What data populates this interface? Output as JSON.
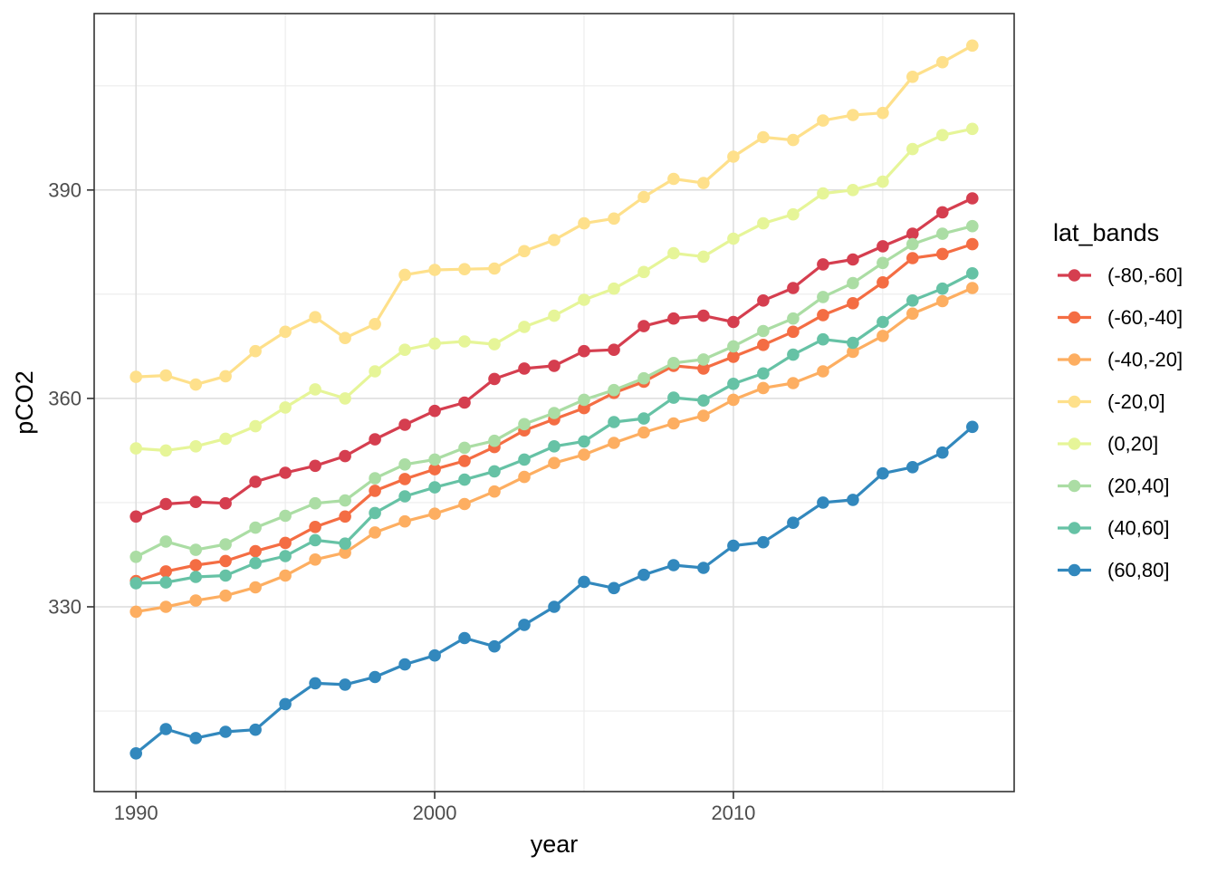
{
  "chart_data": {
    "type": "line",
    "title": "",
    "xlabel": "year",
    "ylabel": "pCO2",
    "legend_title": "lat_bands",
    "legend_position": "right",
    "grid": "on",
    "xlim": [
      1988.6,
      2019.4
    ],
    "ylim": [
      303.4,
      415.4
    ],
    "x_ticks": [
      1990,
      2000,
      2010
    ],
    "x_minor_ticks": [
      1995,
      2005,
      2015
    ],
    "y_ticks": [
      330,
      360,
      390
    ],
    "y_minor_ticks": [
      315,
      345,
      375,
      405
    ],
    "x": [
      1990,
      1991,
      1992,
      1993,
      1994,
      1995,
      1996,
      1997,
      1998,
      1999,
      2000,
      2001,
      2002,
      2003,
      2004,
      2005,
      2006,
      2007,
      2008,
      2009,
      2010,
      2011,
      2012,
      2013,
      2014,
      2015,
      2016,
      2017,
      2018
    ],
    "series": [
      {
        "name": "(-80,-60]",
        "color": "#D53E4F",
        "values": [
          343.0,
          344.8,
          345.1,
          344.9,
          348.0,
          349.3,
          350.3,
          351.7,
          354.1,
          356.2,
          358.2,
          359.4,
          362.8,
          364.3,
          364.7,
          366.8,
          367.0,
          370.4,
          371.5,
          371.9,
          371.0,
          374.1,
          375.9,
          379.3,
          380.0,
          381.9,
          383.7,
          386.8,
          388.8
        ]
      },
      {
        "name": "(-60,-40]",
        "color": "#F46D43",
        "values": [
          333.7,
          335.1,
          336.0,
          336.6,
          338.0,
          339.2,
          341.5,
          343.0,
          346.7,
          348.4,
          349.8,
          351.0,
          353.0,
          355.4,
          357.0,
          358.6,
          360.8,
          362.4,
          364.7,
          364.3,
          366.0,
          367.7,
          369.6,
          372.0,
          373.7,
          376.7,
          380.2,
          380.8,
          382.2
        ]
      },
      {
        "name": "(-40,-20]",
        "color": "#FDAE61",
        "values": [
          329.3,
          330.0,
          330.9,
          331.6,
          332.8,
          334.5,
          336.8,
          337.8,
          340.7,
          342.3,
          343.4,
          344.8,
          346.6,
          348.7,
          350.7,
          351.9,
          353.6,
          355.1,
          356.4,
          357.5,
          359.8,
          361.5,
          362.2,
          363.9,
          366.7,
          369.0,
          372.2,
          374.0,
          375.9
        ]
      },
      {
        "name": "(-20,0]",
        "color": "#FEE08B",
        "values": [
          363.1,
          363.3,
          362.0,
          363.2,
          366.8,
          369.6,
          371.7,
          368.7,
          370.7,
          377.8,
          378.5,
          378.6,
          378.7,
          381.2,
          382.8,
          385.2,
          385.9,
          389.0,
          391.6,
          391.0,
          394.8,
          397.6,
          397.2,
          400.0,
          400.8,
          401.1,
          406.3,
          408.4,
          410.8
        ]
      },
      {
        "name": "(0,20]",
        "color": "#E6F598",
        "values": [
          352.8,
          352.5,
          353.1,
          354.2,
          356.0,
          358.7,
          361.3,
          360.0,
          363.9,
          367.0,
          367.9,
          368.2,
          367.8,
          370.3,
          371.9,
          374.2,
          375.8,
          378.2,
          380.9,
          380.4,
          383.0,
          385.2,
          386.5,
          389.5,
          390.0,
          391.2,
          395.9,
          397.9,
          398.8
        ]
      },
      {
        "name": "(20,40]",
        "color": "#ABDDA4",
        "values": [
          337.2,
          339.4,
          338.2,
          339.0,
          341.4,
          343.1,
          344.9,
          345.3,
          348.5,
          350.5,
          351.2,
          352.9,
          353.9,
          356.3,
          357.9,
          359.8,
          361.2,
          362.9,
          365.1,
          365.6,
          367.5,
          369.7,
          371.5,
          374.6,
          376.6,
          379.5,
          382.2,
          383.7,
          384.8
        ]
      },
      {
        "name": "(40,60]",
        "color": "#66C2A5",
        "values": [
          333.4,
          333.5,
          334.3,
          334.5,
          336.3,
          337.3,
          339.6,
          339.1,
          343.5,
          345.9,
          347.2,
          348.3,
          349.5,
          351.2,
          353.1,
          353.8,
          356.6,
          357.1,
          360.1,
          359.7,
          362.1,
          363.6,
          366.3,
          368.5,
          368.0,
          371.0,
          374.1,
          375.8,
          378.0
        ]
      },
      {
        "name": "(60,80]",
        "color": "#3288BD",
        "values": [
          308.9,
          312.4,
          311.1,
          312.0,
          312.3,
          316.0,
          319.0,
          318.8,
          319.9,
          321.7,
          323.0,
          325.5,
          324.3,
          327.4,
          330.0,
          333.6,
          332.7,
          334.6,
          336.0,
          335.6,
          338.8,
          339.3,
          342.1,
          345.0,
          345.4,
          349.2,
          350.1,
          352.2,
          355.9
        ]
      }
    ],
    "style": {
      "panel_background": "#ffffff",
      "panel_border_color": "#333333",
      "grid_major_color": "#dcdcdc",
      "grid_minor_color": "#ececec",
      "tick_color": "#333333",
      "tick_label_color": "#4d4d4d"
    }
  }
}
